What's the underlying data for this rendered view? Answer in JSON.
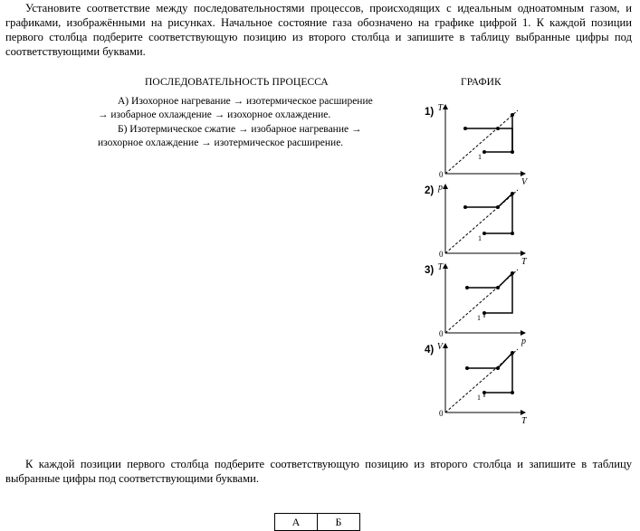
{
  "intro": "Установите соответствие между последовательностями процессов, происходящих с идеальным одноатомным газом, и графиками, изображёнными на рисунках. Начальное состояние газа обозначено на графике цифрой 1. К каждой позиции первого столбца подберите соответствующую позицию из второго столбца и запишите в таблицу выбранные цифры под соответствующими буквами.",
  "headers": {
    "left": "ПОСЛЕДОВАТЕЛЬНОСТЬ ПРОЦЕССА",
    "right": "ГРАФИК"
  },
  "processes": [
    "А) Изохорное нагревание → изотермическое расширение → изобарное охлаждение → изохорное охлаждение.",
    "Б) Изотермическое сжатие → изобарное нагревание → изохорное охлаждение → изотермическое расширение."
  ],
  "graphs": [
    {
      "label": "1)",
      "y_axis": "T",
      "x_axis": "V",
      "origin": "0",
      "start": "1"
    },
    {
      "label": "2)",
      "y_axis": "p",
      "x_axis": "T",
      "origin": "0",
      "start": "1"
    },
    {
      "label": "3)",
      "y_axis": "T",
      "x_axis": "p",
      "origin": "0",
      "start": "1"
    },
    {
      "label": "4)",
      "y_axis": "V",
      "x_axis": "T",
      "origin": "0",
      "start": "1"
    }
  ],
  "outro": "К каждой позиции первого столбца подберите соответствующую позицию из второго столбца и запишите в таблицу выбранные цифры под соответствующими буквами.",
  "answer_table": {
    "col_a": "А",
    "col_b": "Б"
  }
}
